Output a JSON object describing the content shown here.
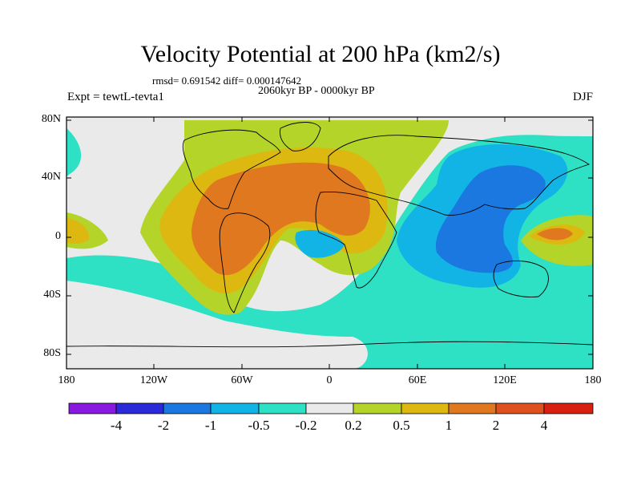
{
  "title": "Velocity Potential at 200 hPa (km2/s)",
  "stats_text": "rmsd= 0.691542 diff= 0.000147642",
  "period_text": "2060kyr BP - 0000kyr BP",
  "experiment_text": "Expt = tewtL-tevta1",
  "season_text": "DJF",
  "lat_labels": [
    "80N",
    "40N",
    "0",
    "40S",
    "80S"
  ],
  "lon_labels": [
    "180",
    "120W",
    "60W",
    "0",
    "60E",
    "120E",
    "180"
  ],
  "colorbar": {
    "labels": [
      "-4",
      "-2",
      "-1",
      "-0.5",
      "-0.2",
      "0.2",
      "0.5",
      "1",
      "2",
      "4"
    ],
    "colors": [
      "#8a19e0",
      "#2a2ad8",
      "#1a78e0",
      "#12b4e6",
      "#2ee0c4",
      "#eaeaea",
      "#b4d42a",
      "#dcb810",
      "#e07820",
      "#e0501e",
      "#d82010"
    ]
  },
  "colors": {
    "neutral": "#eaeaea",
    "lightgreen": "#b4d42a",
    "yellow": "#dcb810",
    "orange": "#e07820",
    "teal": "#2ee0c4",
    "cyan": "#12b4e6",
    "blue": "#1a78e0"
  }
}
